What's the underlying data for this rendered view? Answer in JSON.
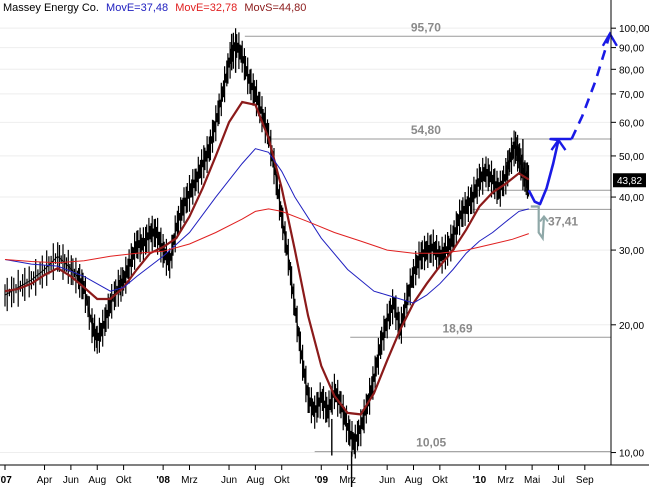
{
  "chart_data": {
    "type": "line",
    "title": {
      "name": "Massey Energy Co.",
      "mov_e_1": "MovE=37,48",
      "mov_e_2": "MovE=32,78",
      "mov_s": "MovS=44,80"
    },
    "y_scale": "log",
    "ylim": [
      9.5,
      108
    ],
    "y_ticks": [
      {
        "value": 100,
        "label": "100,00"
      },
      {
        "value": 90,
        "label": "90,00"
      },
      {
        "value": 80,
        "label": "80,00"
      },
      {
        "value": 70,
        "label": "70,00"
      },
      {
        "value": 60,
        "label": "60,00"
      },
      {
        "value": 50,
        "label": "50,00"
      },
      {
        "value": 40,
        "label": "40,00"
      },
      {
        "value": 30,
        "label": "30,00"
      },
      {
        "value": 20,
        "label": "20,00"
      },
      {
        "value": 10,
        "label": "10,00"
      }
    ],
    "xlim": [
      0,
      42.5
    ],
    "x_ticks": [
      {
        "month": 0,
        "label": "'07",
        "bold": true
      },
      {
        "month": 3,
        "label": "Apr",
        "bold": false
      },
      {
        "month": 5,
        "label": "Jun",
        "bold": false
      },
      {
        "month": 7,
        "label": "Aug",
        "bold": false
      },
      {
        "month": 9,
        "label": "Okt",
        "bold": false
      },
      {
        "month": 12,
        "label": "'08",
        "bold": true
      },
      {
        "month": 14,
        "label": "Mrz",
        "bold": false
      },
      {
        "month": 17,
        "label": "Jun",
        "bold": false
      },
      {
        "month": 19,
        "label": "Aug",
        "bold": false
      },
      {
        "month": 21,
        "label": "Okt",
        "bold": false
      },
      {
        "month": 24,
        "label": "'09",
        "bold": true
      },
      {
        "month": 26,
        "label": "Mrz",
        "bold": false
      },
      {
        "month": 29,
        "label": "Jun",
        "bold": false
      },
      {
        "month": 31,
        "label": "Aug",
        "bold": false
      },
      {
        "month": 33,
        "label": "Okt",
        "bold": false
      },
      {
        "month": 36,
        "label": "'10",
        "bold": true
      },
      {
        "month": 38,
        "label": "Mrz",
        "bold": false
      },
      {
        "month": 40,
        "label": "Mai",
        "bold": false
      },
      {
        "month": 42,
        "label": "Jul",
        "bold": false
      },
      {
        "month": 44,
        "label": "Sep",
        "bold": false
      }
    ],
    "price_points": [
      [
        0,
        23.5
      ],
      [
        1,
        24.5
      ],
      [
        2,
        25.5
      ],
      [
        3,
        27
      ],
      [
        4,
        29
      ],
      [
        4.8,
        27.5
      ],
      [
        5.5,
        26
      ],
      [
        6,
        24.5
      ],
      [
        6.6,
        20
      ],
      [
        7,
        18.5
      ],
      [
        7.5,
        20
      ],
      [
        8,
        22.5
      ],
      [
        8.6,
        24.5
      ],
      [
        9,
        25.5
      ],
      [
        9.5,
        28
      ],
      [
        10,
        31
      ],
      [
        10.5,
        31
      ],
      [
        11,
        33
      ],
      [
        11.5,
        33
      ],
      [
        12,
        30
      ],
      [
        12.5,
        28
      ],
      [
        13,
        34
      ],
      [
        13.5,
        38
      ],
      [
        14,
        41
      ],
      [
        14.5,
        44
      ],
      [
        15,
        48
      ],
      [
        15.5,
        52
      ],
      [
        16,
        60
      ],
      [
        16.5,
        70
      ],
      [
        17,
        83
      ],
      [
        17.5,
        92
      ],
      [
        18,
        86
      ],
      [
        18.5,
        76
      ],
      [
        19,
        70
      ],
      [
        19.5,
        63
      ],
      [
        20,
        56
      ],
      [
        20.5,
        46
      ],
      [
        21,
        36
      ],
      [
        21.5,
        29
      ],
      [
        22,
        22
      ],
      [
        22.5,
        17
      ],
      [
        23,
        13.5
      ],
      [
        23.5,
        12.5
      ],
      [
        24,
        13.5
      ],
      [
        24.5,
        12.5
      ],
      [
        25,
        14
      ],
      [
        25.5,
        13
      ],
      [
        26,
        11.5
      ],
      [
        26.5,
        10.5
      ],
      [
        27,
        11.5
      ],
      [
        27.5,
        13
      ],
      [
        28,
        15
      ],
      [
        28.5,
        18
      ],
      [
        29,
        20.5
      ],
      [
        29.5,
        22.5
      ],
      [
        30,
        19.5
      ],
      [
        30.5,
        23
      ],
      [
        31,
        26.5
      ],
      [
        31.5,
        29
      ],
      [
        32,
        30
      ],
      [
        32.5,
        30.5
      ],
      [
        33,
        29
      ],
      [
        33.5,
        30
      ],
      [
        34,
        32
      ],
      [
        34.5,
        36
      ],
      [
        35,
        38
      ],
      [
        35.5,
        40
      ],
      [
        36,
        44
      ],
      [
        36.5,
        46
      ],
      [
        37,
        44
      ],
      [
        37.5,
        41.5
      ],
      [
        38,
        45
      ],
      [
        38.3,
        49
      ],
      [
        38.7,
        53
      ],
      [
        39,
        50
      ],
      [
        39.3,
        46
      ],
      [
        39.6,
        44
      ],
      [
        39.75,
        43.82
      ]
    ],
    "price_highs": [
      [
        17.2,
        97
      ],
      [
        17.5,
        95.7
      ],
      [
        24.8,
        12
      ],
      [
        26.3,
        10.05
      ],
      [
        39.3,
        54.8
      ]
    ],
    "series": [
      {
        "color": "#8b1a1a",
        "points": [
          [
            0,
            24
          ],
          [
            1,
            24.3
          ],
          [
            2,
            25
          ],
          [
            3,
            26.2
          ],
          [
            4,
            27.2
          ],
          [
            5,
            26
          ],
          [
            6,
            24.5
          ],
          [
            7,
            23
          ],
          [
            8,
            23
          ],
          [
            9,
            24.5
          ],
          [
            10,
            27
          ],
          [
            11,
            29.5
          ],
          [
            12,
            30.5
          ],
          [
            13,
            32
          ],
          [
            14,
            36
          ],
          [
            15,
            42
          ],
          [
            16,
            50
          ],
          [
            17,
            60
          ],
          [
            18,
            67
          ],
          [
            19,
            66
          ],
          [
            20,
            55
          ],
          [
            21,
            42
          ],
          [
            22,
            30
          ],
          [
            23,
            21
          ],
          [
            24,
            16
          ],
          [
            25,
            13.6
          ],
          [
            26,
            12.4
          ],
          [
            27,
            12.3
          ],
          [
            28,
            13.8
          ],
          [
            29,
            16.5
          ],
          [
            30,
            19.5
          ],
          [
            31,
            22.5
          ],
          [
            32,
            25
          ],
          [
            33,
            27.5
          ],
          [
            34,
            30
          ],
          [
            35,
            33.5
          ],
          [
            36,
            38
          ],
          [
            37,
            41
          ],
          [
            38,
            43
          ],
          [
            39,
            45.5
          ],
          [
            39.75,
            44
          ]
        ]
      },
      {
        "color": "#2020c0",
        "points": [
          [
            0,
            28.5
          ],
          [
            2,
            27.8
          ],
          [
            4,
            27.5
          ],
          [
            6,
            26
          ],
          [
            8,
            24
          ],
          [
            9,
            24.5
          ],
          [
            10,
            26
          ],
          [
            12,
            29
          ],
          [
            14,
            33
          ],
          [
            16,
            40
          ],
          [
            18,
            48
          ],
          [
            19,
            52
          ],
          [
            20,
            51
          ],
          [
            21,
            46
          ],
          [
            22,
            40
          ],
          [
            24,
            32
          ],
          [
            26,
            27
          ],
          [
            28,
            24
          ],
          [
            29,
            23.5
          ],
          [
            30,
            23
          ],
          [
            31,
            22.5
          ],
          [
            32,
            23.5
          ],
          [
            33,
            25
          ],
          [
            34,
            27
          ],
          [
            35,
            29.5
          ],
          [
            36,
            31.5
          ],
          [
            37,
            33
          ],
          [
            38,
            35
          ],
          [
            39,
            37
          ],
          [
            39.75,
            37.5
          ]
        ]
      },
      {
        "color": "#e02020",
        "points": [
          [
            0,
            28.5
          ],
          [
            2,
            28.2
          ],
          [
            4,
            28
          ],
          [
            6,
            28.3
          ],
          [
            8,
            29
          ],
          [
            10,
            29.5
          ],
          [
            12,
            29.8
          ],
          [
            14,
            31
          ],
          [
            16,
            33
          ],
          [
            18,
            35.5
          ],
          [
            19,
            37
          ],
          [
            20,
            37.5
          ],
          [
            21,
            37
          ],
          [
            23,
            35
          ],
          [
            25,
            33
          ],
          [
            27,
            31.5
          ],
          [
            29,
            30
          ],
          [
            31,
            29.5
          ],
          [
            33,
            29.5
          ],
          [
            35,
            30
          ],
          [
            37,
            31
          ],
          [
            38.5,
            31.8
          ],
          [
            39.75,
            32.8
          ]
        ]
      }
    ],
    "levels": [
      {
        "value": 95.7,
        "label": "95,70",
        "x_from": 18.2
      },
      {
        "value": 54.8,
        "label": "54,80",
        "x_from": 20
      },
      {
        "value": 18.69,
        "label": "18,69",
        "x_from": 26.2
      },
      {
        "value": 10.05,
        "label": "10,05",
        "x_from": 23.5
      },
      {
        "value": 37.41,
        "label": "37,41",
        "x_from": 35.5
      },
      {
        "value": 41.5,
        "label": "",
        "x_from": 35.5
      }
    ],
    "current_value": {
      "value": 43.82,
      "label": "43,82"
    },
    "forecast_solid": [
      [
        39.75,
        41.5
      ],
      [
        40.2,
        39
      ],
      [
        40.6,
        38.5
      ],
      [
        41.1,
        42
      ],
      [
        41.6,
        48
      ],
      [
        42,
        54.5
      ],
      [
        41.4,
        54.8
      ],
      [
        43,
        54.8
      ]
    ],
    "forecast_dashed": [
      [
        43,
        54.8
      ],
      [
        43.8,
        62
      ],
      [
        44.8,
        75
      ],
      [
        45.5,
        88
      ],
      [
        45.9,
        97
      ]
    ],
    "forecast_gray": [
      [
        39.9,
        38
      ],
      [
        40.5,
        38
      ],
      [
        40.5,
        35
      ],
      [
        40.5,
        33
      ],
      [
        40.8,
        32
      ],
      [
        40.9,
        36
      ]
    ]
  }
}
